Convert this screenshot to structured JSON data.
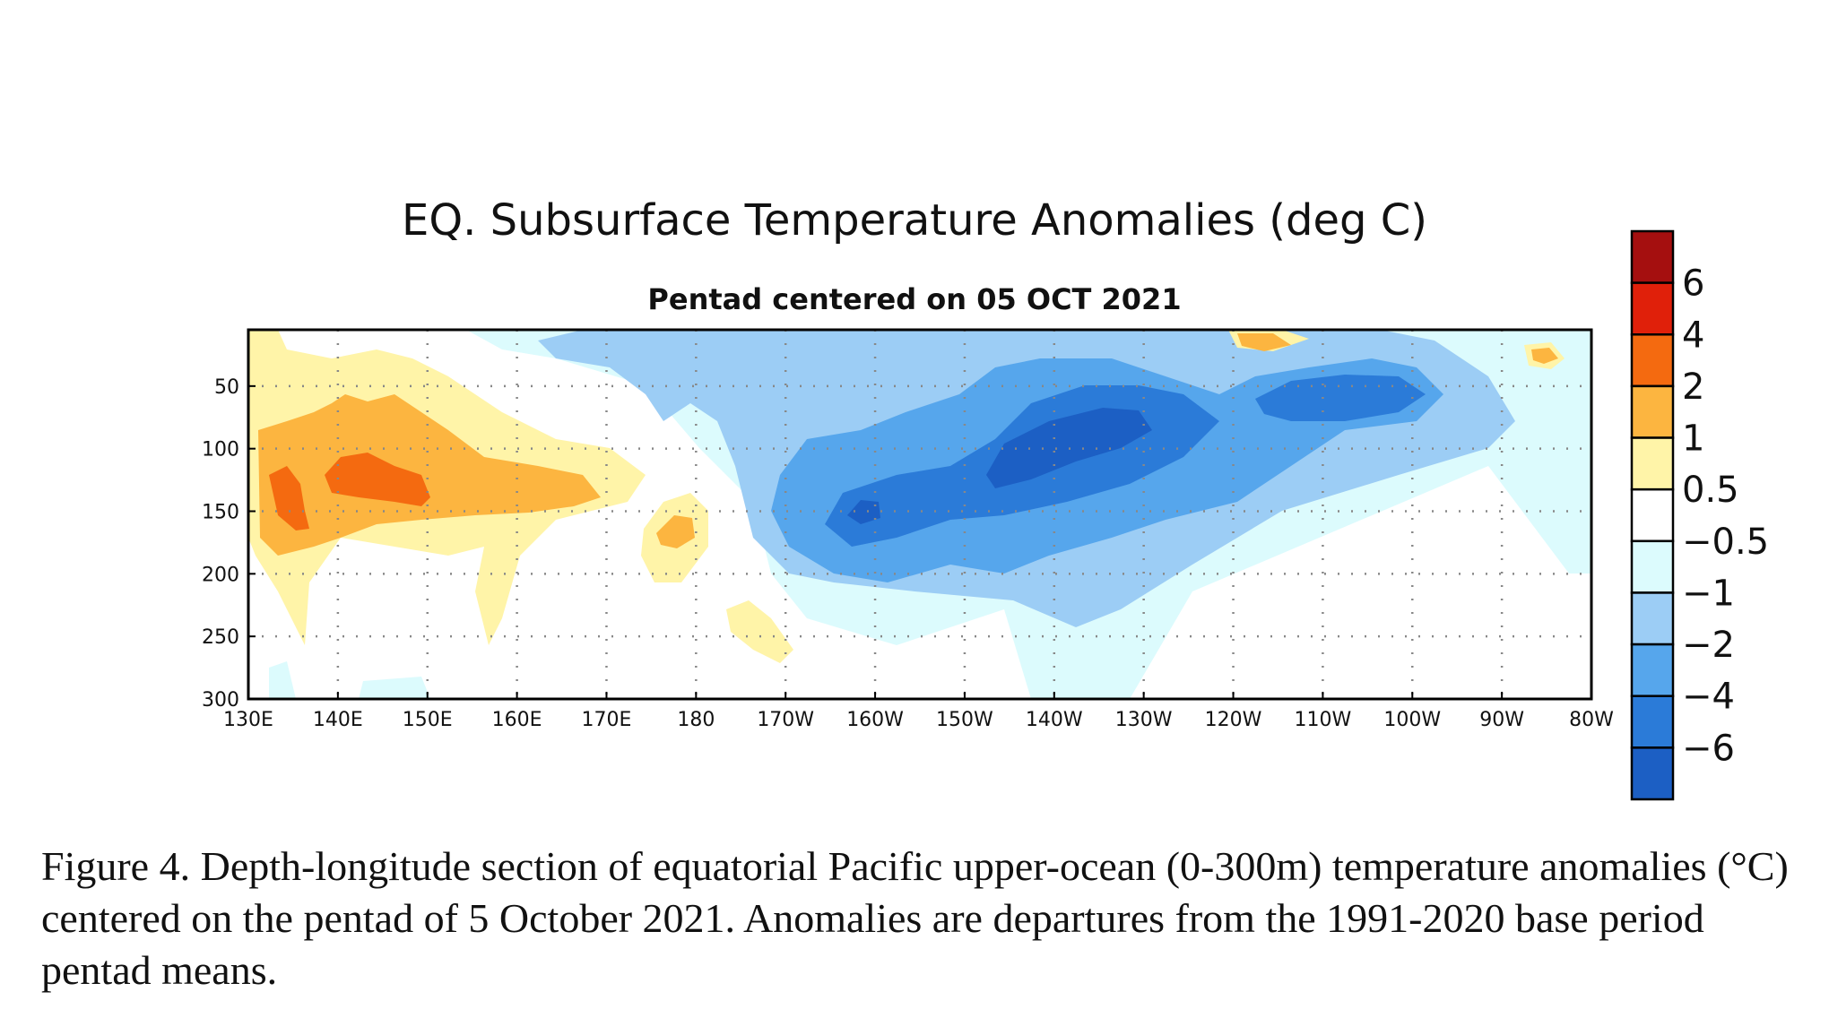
{
  "chart_data": {
    "type": "heatmap",
    "title": "EQ. Subsurface Temperature Anomalies (deg C)",
    "subtitle": "Pentad centered on 05 OCT 2021",
    "xlabel": "",
    "ylabel": "",
    "x_ticks": [
      "130E",
      "140E",
      "150E",
      "160E",
      "170E",
      "180",
      "170W",
      "160W",
      "150W",
      "140W",
      "130W",
      "120W",
      "110W",
      "100W",
      "90W",
      "80W"
    ],
    "y_ticks": [
      "50",
      "100",
      "150",
      "200",
      "250",
      "300"
    ],
    "y_tick_values": [
      50,
      100,
      150,
      200,
      250,
      300
    ],
    "xlim": [
      "130E",
      "80W"
    ],
    "ylim": [
      300,
      5
    ],
    "grid": true,
    "colorbar": {
      "labels": [
        "6",
        "4",
        "2",
        "1",
        "0.5",
        "−0.5",
        "−1",
        "−2",
        "−4",
        "−6"
      ],
      "colors": [
        "#a50f0f",
        "#e0200a",
        "#f46a10",
        "#fcb540",
        "#fff4a8",
        "#ffffff",
        "#dcfbfd",
        "#9ccdf5",
        "#56a6ec",
        "#2b7bd8",
        "#1c5fc4"
      ]
    },
    "anomaly_regions": [
      {
        "name": "western warm core",
        "level": 2,
        "lon_range": [
          "131E",
          "148E"
        ],
        "depth_range": [
          110,
          170
        ]
      },
      {
        "name": "central cold core",
        "level": -4,
        "lon_range": [
          "160W",
          "130W"
        ],
        "depth_range": [
          70,
          160
        ]
      },
      {
        "name": "eastern cold patch",
        "level": -2,
        "lon_range": [
          "120W",
          "95W"
        ],
        "depth_range": [
          30,
          90
        ]
      }
    ]
  },
  "caption": "Figure 4. Depth-longitude section of equatorial Pacific upper-ocean (0-300m) temperature anomalies (°C) centered on the pentad of 5 October 2021. Anomalies are departures from the 1991-2020 base period pentad means."
}
